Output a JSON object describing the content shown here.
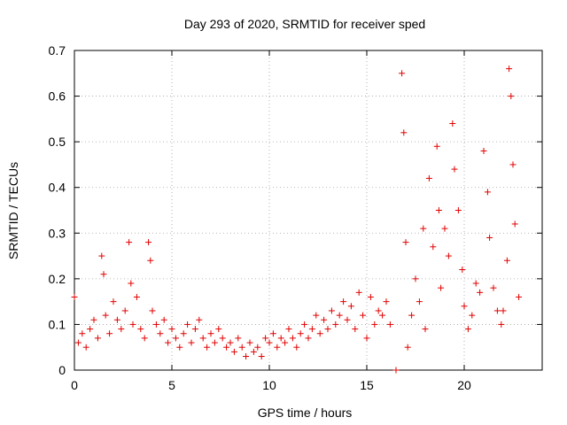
{
  "chart_data": {
    "type": "scatter",
    "title": "Day 293 of 2020, SRMTID for receiver sped",
    "xlabel": "GPS time / hours",
    "ylabel": "SRMTID / TECUs",
    "xlim": [
      0,
      24
    ],
    "ylim": [
      0,
      0.7
    ],
    "xticks": [
      0,
      5,
      10,
      15,
      20
    ],
    "yticks": [
      0,
      0.1,
      0.2,
      0.3,
      0.4,
      0.5,
      0.6,
      0.7
    ],
    "xtick_labels": [
      "0",
      "5",
      "10",
      "15",
      "20"
    ],
    "ytick_labels": [
      "0",
      "0.1",
      "0.2",
      "0.3",
      "0.4",
      "0.5",
      "0.6",
      "0.7"
    ],
    "grid": true,
    "marker": "+",
    "color": "#e00000",
    "series": [
      {
        "name": "SRMTID",
        "x": [
          0.0,
          0.2,
          0.4,
          0.6,
          0.8,
          1.0,
          1.2,
          1.4,
          1.5,
          1.6,
          1.8,
          2.0,
          2.2,
          2.4,
          2.6,
          2.8,
          2.9,
          3.0,
          3.2,
          3.4,
          3.6,
          3.8,
          3.9,
          4.0,
          4.2,
          4.4,
          4.6,
          4.8,
          5.0,
          5.2,
          5.4,
          5.6,
          5.8,
          6.0,
          6.2,
          6.4,
          6.6,
          6.8,
          7.0,
          7.2,
          7.4,
          7.6,
          7.8,
          8.0,
          8.2,
          8.4,
          8.6,
          8.8,
          9.0,
          9.2,
          9.4,
          9.6,
          9.8,
          10.0,
          10.2,
          10.4,
          10.6,
          10.8,
          11.0,
          11.2,
          11.4,
          11.6,
          11.8,
          12.0,
          12.2,
          12.4,
          12.6,
          12.8,
          13.0,
          13.2,
          13.4,
          13.6,
          13.8,
          14.0,
          14.2,
          14.4,
          14.6,
          14.8,
          15.0,
          15.2,
          15.4,
          15.6,
          15.8,
          16.0,
          16.2,
          16.5,
          16.8,
          16.9,
          17.0,
          17.1,
          17.3,
          17.5,
          17.7,
          17.9,
          18.0,
          18.2,
          18.4,
          18.6,
          18.7,
          18.8,
          19.0,
          19.2,
          19.4,
          19.5,
          19.7,
          19.9,
          20.0,
          20.2,
          20.4,
          20.6,
          20.8,
          21.0,
          21.2,
          21.3,
          21.5,
          21.7,
          21.9,
          22.0,
          22.2,
          22.3,
          22.4,
          22.5,
          22.6,
          22.8
        ],
        "y": [
          0.16,
          0.06,
          0.08,
          0.05,
          0.09,
          0.11,
          0.07,
          0.25,
          0.21,
          0.12,
          0.08,
          0.15,
          0.11,
          0.09,
          0.13,
          0.28,
          0.19,
          0.1,
          0.16,
          0.09,
          0.07,
          0.28,
          0.24,
          0.13,
          0.1,
          0.08,
          0.11,
          0.06,
          0.09,
          0.07,
          0.05,
          0.08,
          0.1,
          0.06,
          0.09,
          0.11,
          0.07,
          0.05,
          0.08,
          0.06,
          0.09,
          0.07,
          0.05,
          0.06,
          0.04,
          0.07,
          0.05,
          0.03,
          0.06,
          0.04,
          0.05,
          0.03,
          0.07,
          0.06,
          0.08,
          0.05,
          0.07,
          0.06,
          0.09,
          0.07,
          0.05,
          0.08,
          0.1,
          0.07,
          0.09,
          0.12,
          0.08,
          0.11,
          0.09,
          0.13,
          0.1,
          0.12,
          0.15,
          0.11,
          0.14,
          0.09,
          0.17,
          0.12,
          0.07,
          0.16,
          0.1,
          0.13,
          0.12,
          0.15,
          0.1,
          0.0,
          0.65,
          0.52,
          0.28,
          0.05,
          0.12,
          0.2,
          0.15,
          0.31,
          0.09,
          0.42,
          0.27,
          0.49,
          0.35,
          0.18,
          0.31,
          0.25,
          0.54,
          0.44,
          0.35,
          0.22,
          0.14,
          0.09,
          0.12,
          0.19,
          0.17,
          0.48,
          0.39,
          0.29,
          0.18,
          0.13,
          0.1,
          0.13,
          0.24,
          0.66,
          0.6,
          0.45,
          0.32,
          0.16
        ]
      }
    ]
  }
}
